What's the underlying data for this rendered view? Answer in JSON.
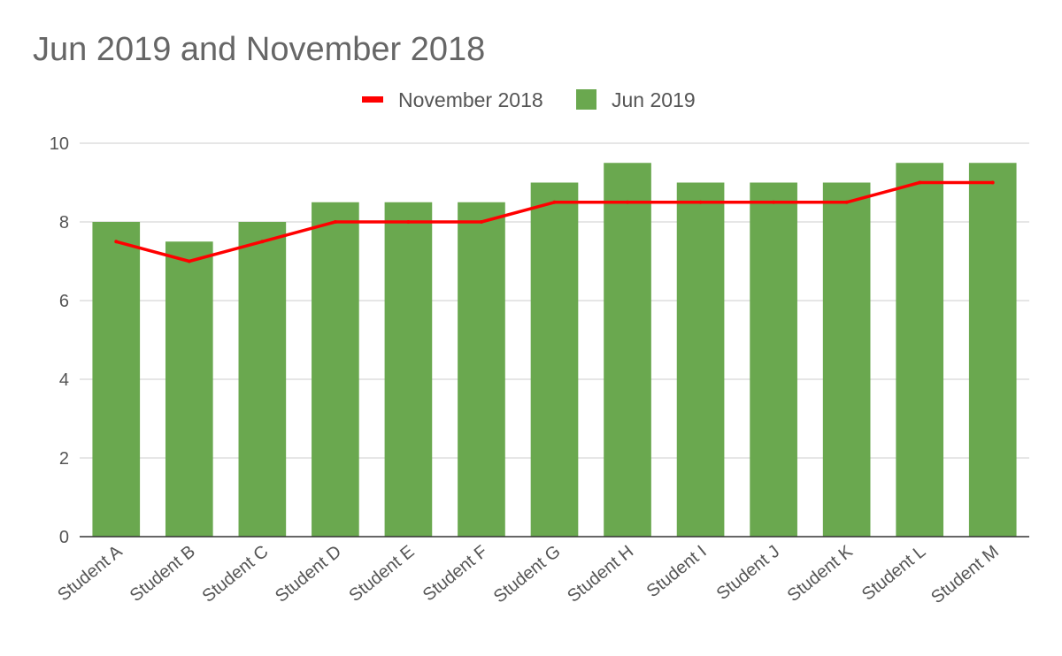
{
  "chart_data": {
    "type": "bar",
    "title": "Jun 2019 and November 2018",
    "xlabel": "",
    "ylabel": "",
    "ylim": [
      0,
      10
    ],
    "yticks": [
      0,
      2,
      4,
      6,
      8,
      10
    ],
    "grid": true,
    "legend_position": "top",
    "categories": [
      "Student A",
      "Student B",
      "Student C",
      "Student D",
      "Student E",
      "Student F",
      "Student G",
      "Student H",
      "Student I",
      "Student J",
      "Student K",
      "Student L",
      "Student M"
    ],
    "series": [
      {
        "name": "November 2018",
        "kind": "line",
        "color": "#ff0000",
        "values": [
          7.5,
          7,
          7.5,
          8,
          8,
          8,
          8.5,
          8.5,
          8.5,
          8.5,
          8.5,
          9,
          9
        ]
      },
      {
        "name": "Jun 2019",
        "kind": "bar",
        "color": "#6aa84f",
        "values": [
          8,
          7.5,
          8,
          8.5,
          8.5,
          8.5,
          9,
          9.5,
          9,
          9,
          9,
          9.5,
          9.5
        ]
      }
    ]
  }
}
